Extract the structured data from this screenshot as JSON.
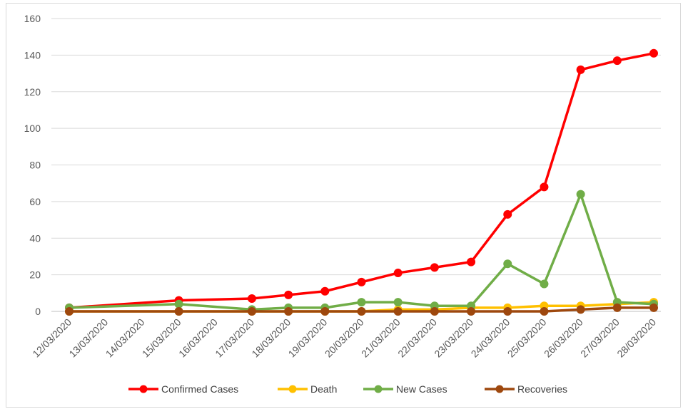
{
  "chart_data": {
    "type": "line",
    "title": "",
    "xlabel": "",
    "ylabel": "",
    "ylim": [
      0,
      160
    ],
    "yticks": [
      0,
      20,
      40,
      60,
      80,
      100,
      120,
      140,
      160
    ],
    "categories": [
      "12/03/2020",
      "13/03/2020",
      "14/03/2020",
      "15/03/2020",
      "16/03/2020",
      "17/03/2020",
      "18/03/2020",
      "19/03/2020",
      "20/03/2020",
      "21/03/2020",
      "22/03/2020",
      "23/03/2020",
      "24/03/2020",
      "25/03/2020",
      "26/03/2020",
      "27/03/2020",
      "28/03/2020"
    ],
    "grid": true,
    "legend_position": "bottom",
    "series": [
      {
        "name": "Confirmed Cases",
        "color": "#ff0000",
        "points": [
          [
            "12/03/2020",
            2
          ],
          [
            "15/03/2020",
            6
          ],
          [
            "17/03/2020",
            7
          ],
          [
            "18/03/2020",
            9
          ],
          [
            "19/03/2020",
            11
          ],
          [
            "20/03/2020",
            16
          ],
          [
            "21/03/2020",
            21
          ],
          [
            "22/03/2020",
            24
          ],
          [
            "23/03/2020",
            27
          ],
          [
            "24/03/2020",
            53
          ],
          [
            "25/03/2020",
            68
          ],
          [
            "26/03/2020",
            132
          ],
          [
            "27/03/2020",
            137
          ],
          [
            "28/03/2020",
            141
          ]
        ]
      },
      {
        "name": "Death",
        "color": "#ffc000",
        "points": [
          [
            "12/03/2020",
            0
          ],
          [
            "15/03/2020",
            0
          ],
          [
            "17/03/2020",
            0
          ],
          [
            "18/03/2020",
            0
          ],
          [
            "19/03/2020",
            0
          ],
          [
            "20/03/2020",
            0
          ],
          [
            "21/03/2020",
            1
          ],
          [
            "22/03/2020",
            1
          ],
          [
            "23/03/2020",
            2
          ],
          [
            "24/03/2020",
            2
          ],
          [
            "25/03/2020",
            3
          ],
          [
            "26/03/2020",
            3
          ],
          [
            "27/03/2020",
            4
          ],
          [
            "28/03/2020",
            5
          ]
        ]
      },
      {
        "name": "New Cases",
        "color": "#70ad47",
        "points": [
          [
            "12/03/2020",
            2
          ],
          [
            "15/03/2020",
            4
          ],
          [
            "17/03/2020",
            1
          ],
          [
            "18/03/2020",
            2
          ],
          [
            "19/03/2020",
            2
          ],
          [
            "20/03/2020",
            5
          ],
          [
            "21/03/2020",
            5
          ],
          [
            "22/03/2020",
            3
          ],
          [
            "23/03/2020",
            3
          ],
          [
            "24/03/2020",
            26
          ],
          [
            "25/03/2020",
            15
          ],
          [
            "26/03/2020",
            64
          ],
          [
            "27/03/2020",
            5
          ],
          [
            "28/03/2020",
            4
          ]
        ]
      },
      {
        "name": "Recoveries",
        "color": "#9e480e",
        "points": [
          [
            "12/03/2020",
            0
          ],
          [
            "15/03/2020",
            0
          ],
          [
            "17/03/2020",
            0
          ],
          [
            "18/03/2020",
            0
          ],
          [
            "19/03/2020",
            0
          ],
          [
            "20/03/2020",
            0
          ],
          [
            "21/03/2020",
            0
          ],
          [
            "22/03/2020",
            0
          ],
          [
            "23/03/2020",
            0
          ],
          [
            "24/03/2020",
            0
          ],
          [
            "25/03/2020",
            0
          ],
          [
            "26/03/2020",
            1
          ],
          [
            "27/03/2020",
            2
          ],
          [
            "28/03/2020",
            2
          ]
        ]
      }
    ]
  }
}
